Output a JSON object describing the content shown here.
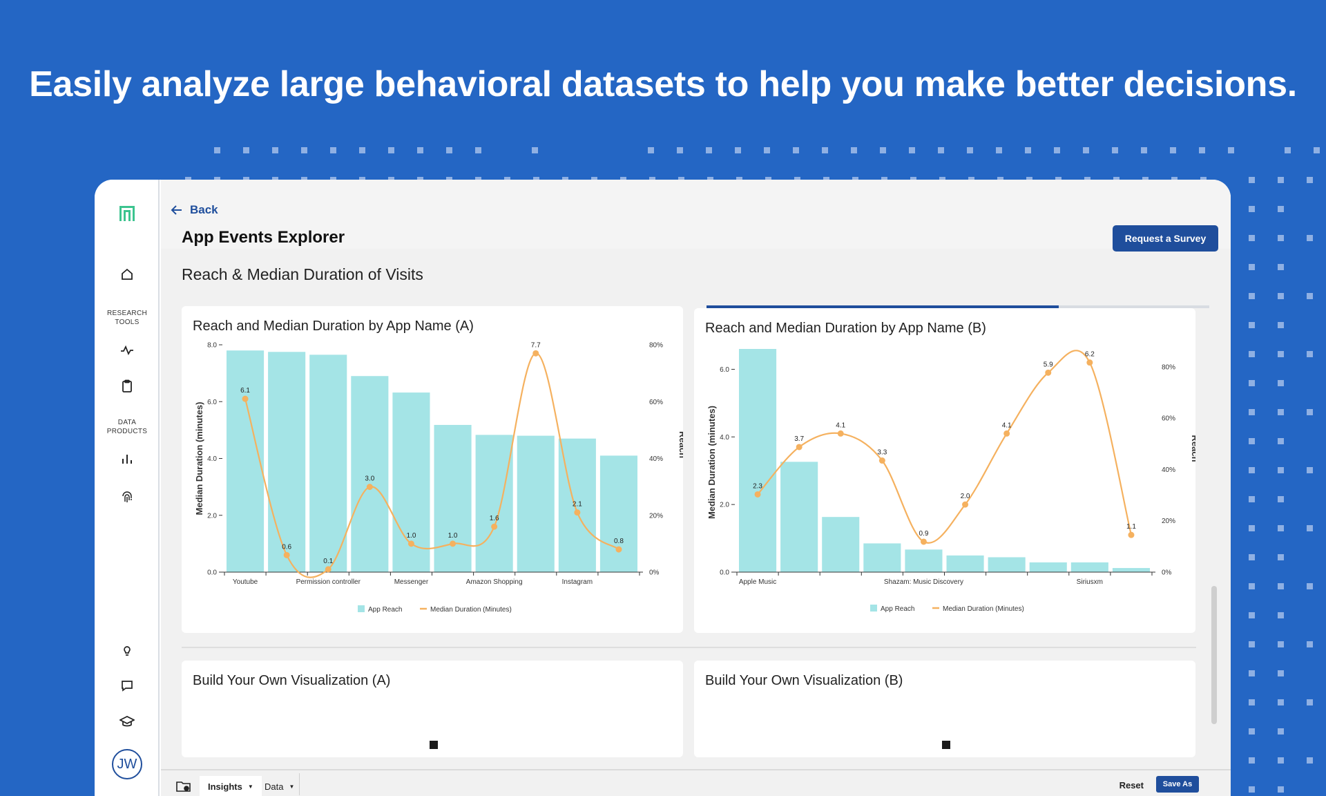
{
  "headline": "Easily analyze large behavioral datasets to help you make better decisions.",
  "colors": {
    "background": "#2466c4",
    "primary": "#1f4e9c",
    "bar": "#a4e4e6",
    "line": "#f5b15f",
    "logo": "#3cc48f"
  },
  "sidebar": {
    "research_tools_label": "RESEARCH\nTOOLS",
    "data_products_label": "DATA\nPRODUCTS",
    "avatar_initials": "JW",
    "icons": [
      "app-logo-icon",
      "home-icon",
      "activity-icon",
      "clipboard-icon",
      "bar-chart-icon",
      "fingerprint-icon",
      "lightbulb-icon",
      "chat-icon",
      "graduation-cap-icon"
    ]
  },
  "header": {
    "back_label": "Back",
    "page_title": "App Events Explorer",
    "request_button": "Request a Survey",
    "section_title": "Reach & Median Duration of Visits"
  },
  "cards": {
    "byo_a_title": "Build Your Own Visualization (A)",
    "byo_b_title": "Build Your Own Visualization (B)"
  },
  "bottombar": {
    "insights_label": "Insights",
    "data_label": "Data",
    "reset_label": "Reset",
    "save_as_label": "Save As"
  },
  "chart_data": [
    {
      "type": "bar",
      "title": "Reach and Median Duration by App Name (A)",
      "ylabel": "Median Duration (minutes)",
      "y2label": "Reach",
      "ylim": [
        0,
        8
      ],
      "y2lim": [
        0,
        80
      ],
      "yticks": [
        "0.0",
        "2.0",
        "4.0",
        "6.0",
        "8.0"
      ],
      "y2ticks": [
        "0%",
        "20%",
        "40%",
        "60%",
        "80%"
      ],
      "categories": [
        "Youtube",
        "",
        "Permission controller",
        "",
        "Messenger",
        "",
        "Amazon Shopping",
        "",
        "Instagram",
        ""
      ],
      "series": [
        {
          "name": "App Reach",
          "type": "bar",
          "values": [
            78,
            77.5,
            76.5,
            69,
            63.2,
            51.8,
            48.3,
            48,
            47,
            41
          ]
        },
        {
          "name": "Median Duration (Minutes)",
          "type": "line",
          "values": [
            6.1,
            0.6,
            0.1,
            3.0,
            1.0,
            1.0,
            1.6,
            7.7,
            2.1,
            0.8
          ],
          "labels": [
            "6.1",
            "0.6",
            "0.1",
            "3.0",
            "1.0",
            "1.0",
            "1.6",
            "7.7",
            "2.1",
            "0.8"
          ]
        }
      ],
      "legend": [
        "App Reach",
        "Median Duration (Minutes)"
      ],
      "legend_position": "bottom"
    },
    {
      "type": "bar",
      "title": "Reach and Median Duration by App Name (B)",
      "ylabel": "Median Duration (minutes)",
      "y2label": "Reach",
      "ylim": [
        0,
        6.5
      ],
      "y2lim": [
        0,
        87
      ],
      "yticks": [
        "0.0",
        "2.0",
        "4.0",
        "6.0"
      ],
      "y2ticks": [
        "0%",
        "20%",
        "40%",
        "60%",
        "80%"
      ],
      "categories": [
        "Apple Music",
        "",
        "",
        "",
        "Shazam: Music Discovery",
        "",
        "",
        "",
        "Siriusxm",
        ""
      ],
      "series": [
        {
          "name": "App Reach",
          "type": "bar",
          "values": [
            87,
            43,
            21.5,
            11.2,
            8.8,
            6.5,
            5.8,
            3.8,
            3.8,
            1.6
          ]
        },
        {
          "name": "Median Duration (Minutes)",
          "type": "line",
          "values": [
            2.3,
            3.7,
            4.1,
            3.3,
            0.9,
            2.0,
            4.1,
            5.9,
            6.2,
            1.1
          ],
          "labels": [
            "2.3",
            "3.7",
            "4.1",
            "3.3",
            "0.9",
            "2.0",
            "4.1",
            "5.9",
            "6.2",
            "1.1"
          ]
        }
      ],
      "legend": [
        "App Reach",
        "Median Duration (Minutes)"
      ],
      "legend_position": "bottom"
    }
  ]
}
